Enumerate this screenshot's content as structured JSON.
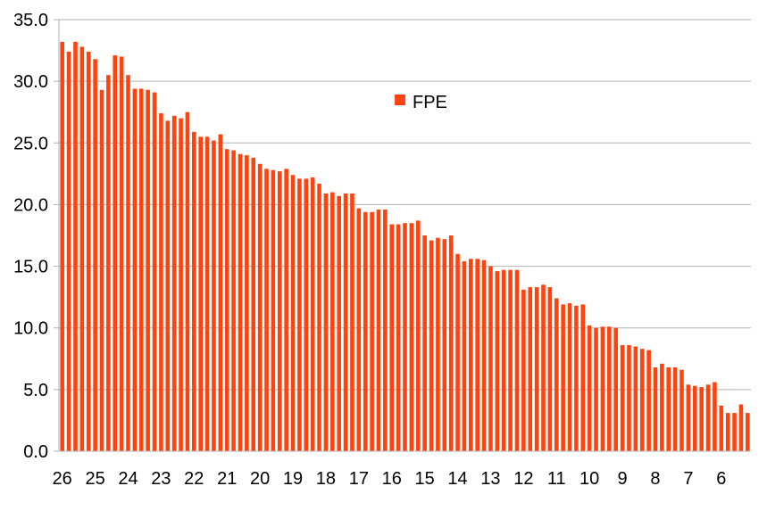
{
  "colors": {
    "bar": "#ff420e",
    "grid": "#b3b3b3",
    "axis": "#b3b3b3",
    "background": "#ffffff"
  },
  "chart_data": {
    "type": "bar",
    "title": "",
    "xlabel": "",
    "ylabel": "",
    "ylim": [
      0,
      35
    ],
    "y_ticks": [
      "0.0",
      "5.0",
      "10.0",
      "15.0",
      "20.0",
      "25.0",
      "30.0",
      "35.0"
    ],
    "x_tick_labels": [
      "26",
      "25",
      "24",
      "23",
      "22",
      "21",
      "20",
      "19",
      "18",
      "17",
      "16",
      "15",
      "14",
      "13",
      "12",
      "11",
      "10",
      "9",
      "8",
      "7",
      "6"
    ],
    "grid": true,
    "legend_position": "top-center",
    "series": [
      {
        "name": "FPE",
        "values": [
          33.2,
          32.4,
          33.2,
          32.8,
          32.4,
          31.8,
          29.3,
          30.5,
          32.1,
          32.0,
          30.5,
          29.4,
          29.4,
          29.3,
          29.1,
          27.4,
          26.8,
          27.2,
          27.0,
          27.5,
          25.9,
          25.5,
          25.5,
          25.2,
          25.7,
          24.5,
          24.4,
          24.1,
          24.0,
          23.8,
          23.3,
          22.9,
          22.8,
          22.7,
          22.9,
          22.4,
          22.1,
          22.1,
          22.2,
          21.7,
          20.9,
          21.0,
          20.7,
          20.9,
          20.9,
          19.7,
          19.4,
          19.4,
          19.6,
          19.6,
          18.4,
          18.4,
          18.5,
          18.5,
          18.7,
          17.5,
          17.1,
          17.3,
          17.2,
          17.5,
          16.0,
          15.4,
          15.6,
          15.6,
          15.5,
          15.0,
          14.6,
          14.7,
          14.7,
          14.7,
          13.1,
          13.3,
          13.3,
          13.5,
          13.3,
          12.4,
          11.9,
          12.0,
          11.8,
          11.9,
          10.2,
          10.0,
          10.1,
          10.1,
          10.0,
          8.6,
          8.6,
          8.5,
          8.3,
          8.2,
          6.8,
          7.1,
          6.8,
          6.8,
          6.6,
          5.4,
          5.3,
          5.2,
          5.4,
          5.6,
          3.7,
          3.1,
          3.1,
          3.8,
          3.1
        ]
      }
    ]
  }
}
